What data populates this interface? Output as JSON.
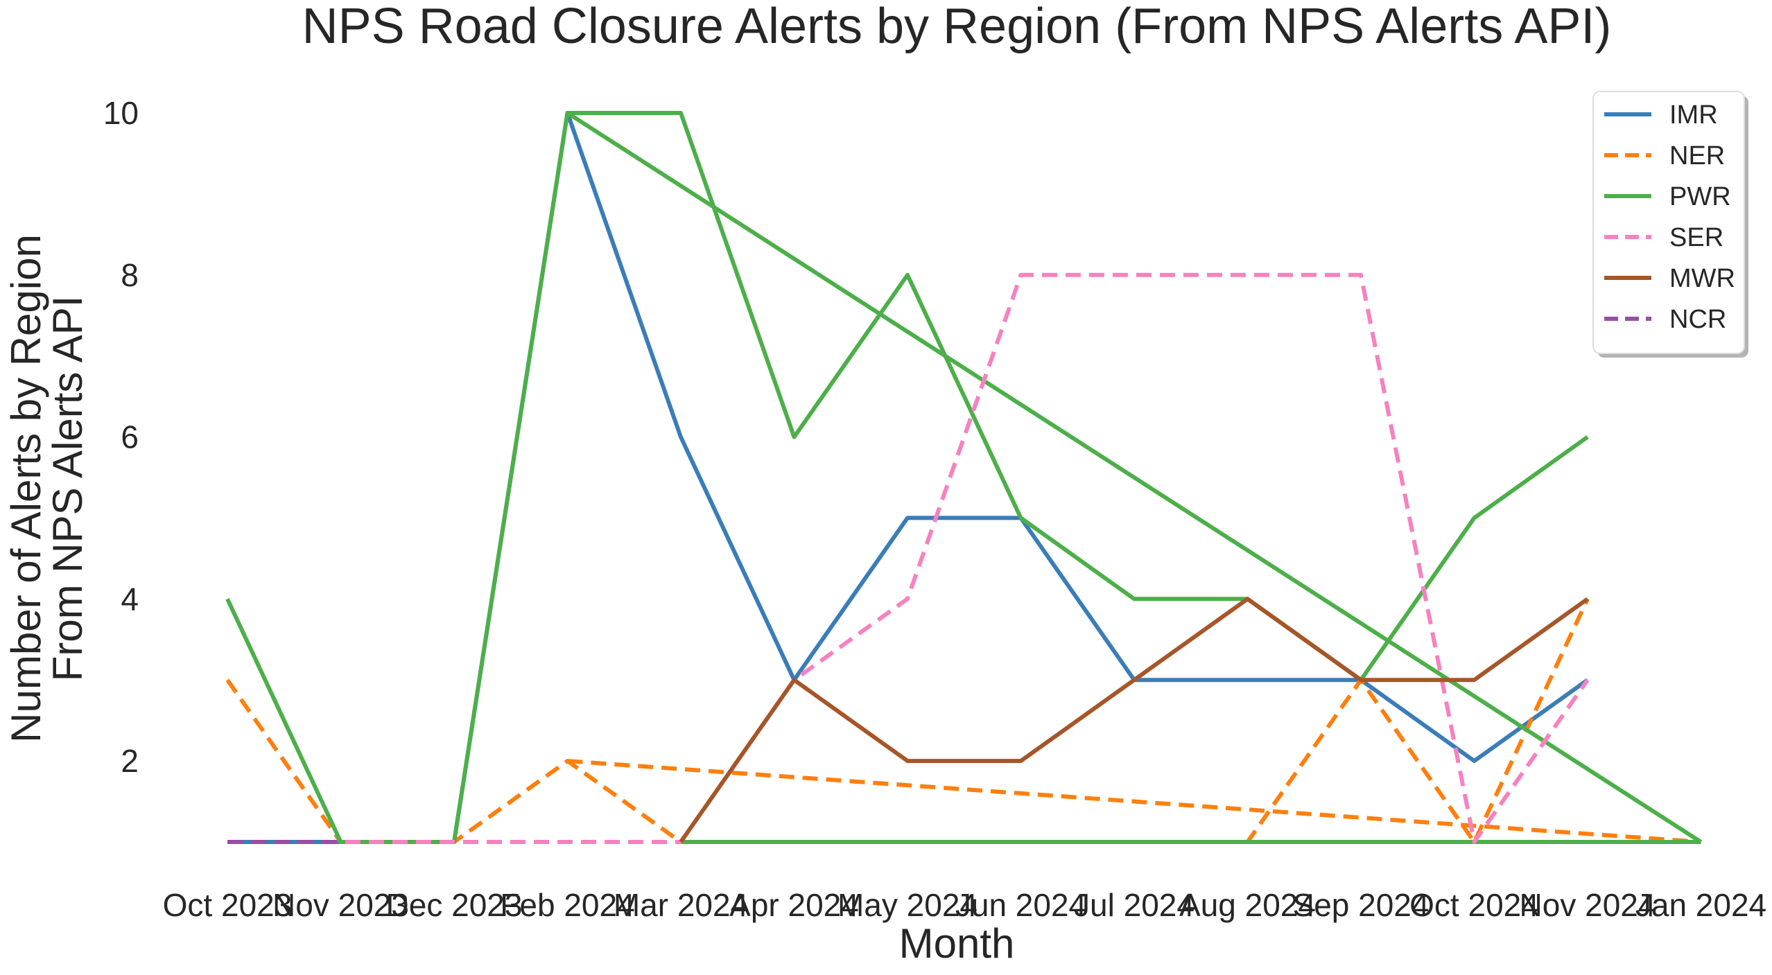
{
  "chart_data": {
    "type": "line",
    "title": "NPS Road Closure Alerts by Region (From NPS Alerts API)",
    "xlabel": "Month",
    "ylabel": [
      "Number of Alerts by Region",
      "From NPS Alerts API"
    ],
    "categories": [
      "Oct 2023",
      "Nov 2023",
      "Dec 2023",
      "Feb 2024",
      "Mar 2024",
      "Apr 2024",
      "May 2024",
      "Jun 2024",
      "Jul 2024",
      "Aug 2024",
      "Sep 2024",
      "Oct 2024",
      "Nov 2024",
      "Jan 2024"
    ],
    "ylim": [
      1,
      10
    ],
    "yticks": [
      2,
      4,
      6,
      8,
      10
    ],
    "grid": false,
    "legend_position": "top-right",
    "series": [
      {
        "name": "IMR",
        "color": "#3a7db8",
        "dash": "solid",
        "points": [
          [
            0,
            1
          ],
          [
            1,
            1
          ],
          [
            2,
            1
          ],
          [
            3,
            10
          ],
          [
            4,
            6
          ],
          [
            5,
            3
          ],
          [
            6,
            5
          ],
          [
            7,
            5
          ],
          [
            8,
            3
          ],
          [
            9,
            3
          ],
          [
            10,
            3
          ],
          [
            11,
            2
          ],
          [
            12,
            3
          ]
        ]
      },
      {
        "name": "NER",
        "color": "#ff7f0e",
        "dash": "dashed",
        "points": [
          [
            0,
            3
          ],
          [
            1,
            1
          ],
          [
            2,
            1
          ],
          [
            3,
            2
          ],
          [
            4,
            1
          ],
          [
            5,
            1
          ],
          [
            6,
            1
          ],
          [
            7,
            1
          ],
          [
            8,
            1
          ],
          [
            9,
            1
          ],
          [
            10,
            3
          ],
          [
            11,
            1
          ],
          [
            12,
            4
          ]
        ],
        "extra_segments": [
          [
            [
              3,
              2
            ],
            [
              13,
              1
            ]
          ]
        ]
      },
      {
        "name": "PWR",
        "color": "#4daf4a",
        "dash": "solid",
        "points": [
          [
            0,
            4
          ],
          [
            1,
            1
          ],
          [
            2,
            1
          ],
          [
            3,
            10
          ],
          [
            4,
            10
          ],
          [
            5,
            6
          ],
          [
            6,
            8
          ],
          [
            7,
            5
          ],
          [
            8,
            4
          ],
          [
            9,
            4
          ],
          [
            10,
            3
          ],
          [
            11,
            5
          ],
          [
            12,
            6
          ]
        ],
        "extra_segments": [
          [
            [
              3,
              10
            ],
            [
              13,
              1
            ]
          ],
          [
            [
              4,
              1
            ],
            [
              13,
              1
            ]
          ]
        ]
      },
      {
        "name": "SER",
        "color": "#f781bf",
        "dash": "dashed",
        "points": [
          [
            0,
            1
          ],
          [
            1,
            1
          ],
          [
            2,
            1
          ],
          [
            3,
            1
          ],
          [
            4,
            1
          ],
          [
            5,
            3
          ],
          [
            6,
            4
          ],
          [
            7,
            8
          ],
          [
            8,
            8
          ],
          [
            9,
            8
          ],
          [
            10,
            8
          ],
          [
            11,
            1
          ],
          [
            12,
            3
          ]
        ]
      },
      {
        "name": "MWR",
        "color": "#a65628",
        "dash": "solid",
        "points": [
          [
            4,
            1
          ],
          [
            5,
            3
          ],
          [
            6,
            2
          ],
          [
            7,
            2
          ],
          [
            8,
            3
          ],
          [
            9,
            4
          ],
          [
            10,
            3
          ],
          [
            11,
            3
          ],
          [
            12,
            4
          ]
        ]
      },
      {
        "name": "NCR",
        "color": "#984ea3",
        "dash": "dashed",
        "points": [
          [
            0,
            1
          ],
          [
            1,
            1
          ]
        ]
      }
    ]
  }
}
